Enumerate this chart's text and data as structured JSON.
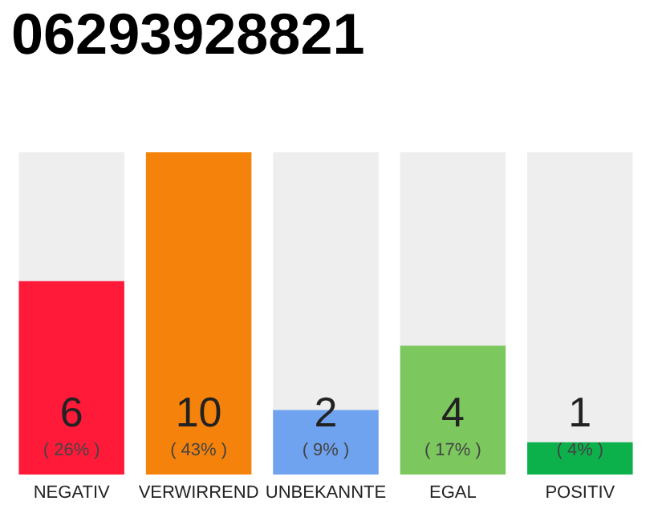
{
  "chart_data": {
    "type": "bar",
    "title": "06293928821",
    "categories": [
      "NEGATIV",
      "VERWIRREND",
      "UNBEKANNTE",
      "EGAL",
      "POSITIV"
    ],
    "values": [
      6,
      10,
      2,
      4,
      1
    ],
    "colors": [
      "#ff1a3a",
      "#f5820a",
      "#6fa3ef",
      "#7dc85e",
      "#0db14b"
    ],
    "value_labels": [
      "6\n( 26% )",
      "10\n( 43% )",
      "2\n( 9% )",
      "4\n( 17% )",
      "1\n( 4% )"
    ]
  }
}
